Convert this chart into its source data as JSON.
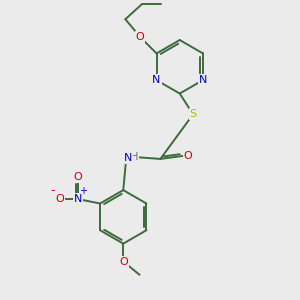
{
  "bg_color": "#ebebeb",
  "bond_color": "#3d6b3d",
  "N_color": "#0000cc",
  "O_color": "#cc0000",
  "S_color": "#b8b800",
  "line_width": 1.4,
  "dbo": 0.07,
  "figsize": [
    3.0,
    3.0
  ],
  "dpi": 100,
  "xlim": [
    0,
    10
  ],
  "ylim": [
    0,
    10
  ]
}
